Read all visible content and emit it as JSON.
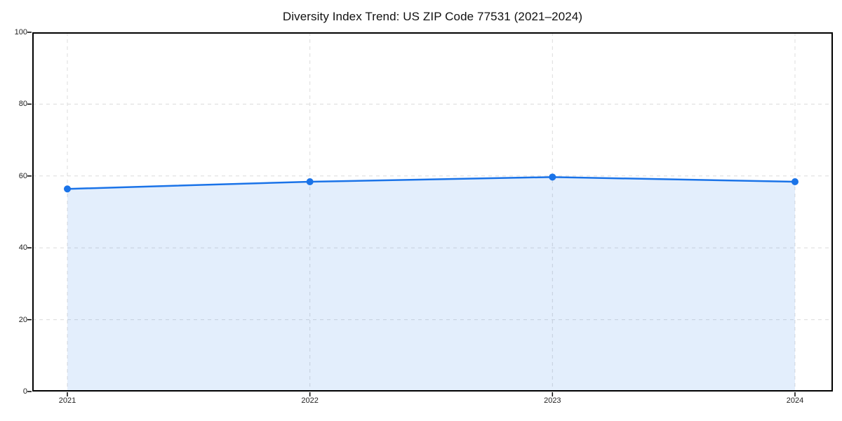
{
  "chart_data": {
    "type": "line",
    "style": "line-with-area-fill",
    "title": "Diversity Index Trend: US ZIP Code 77531 (2021–2024)",
    "categories": [
      "2021",
      "2022",
      "2023",
      "2024"
    ],
    "series": [
      {
        "name": "Diversity Index",
        "values": [
          56.4,
          58.4,
          59.7,
          58.4
        ]
      }
    ],
    "xlabel": "",
    "ylabel": "",
    "ylim": [
      0,
      100
    ],
    "yticks": [
      0,
      20,
      40,
      60,
      80,
      100
    ],
    "grid": true,
    "grid_style": "dashed",
    "legend_position": "none",
    "markers": "circle",
    "colors": {
      "line": "#1a73e8",
      "marker": "#1a73e8",
      "area_fill": "rgba(26,115,232,0.12)",
      "grid": "#dcdcdc",
      "axis_frame": "#000000",
      "tick_label": "#222222",
      "title_text": "#111111",
      "background": "#ffffff"
    }
  }
}
